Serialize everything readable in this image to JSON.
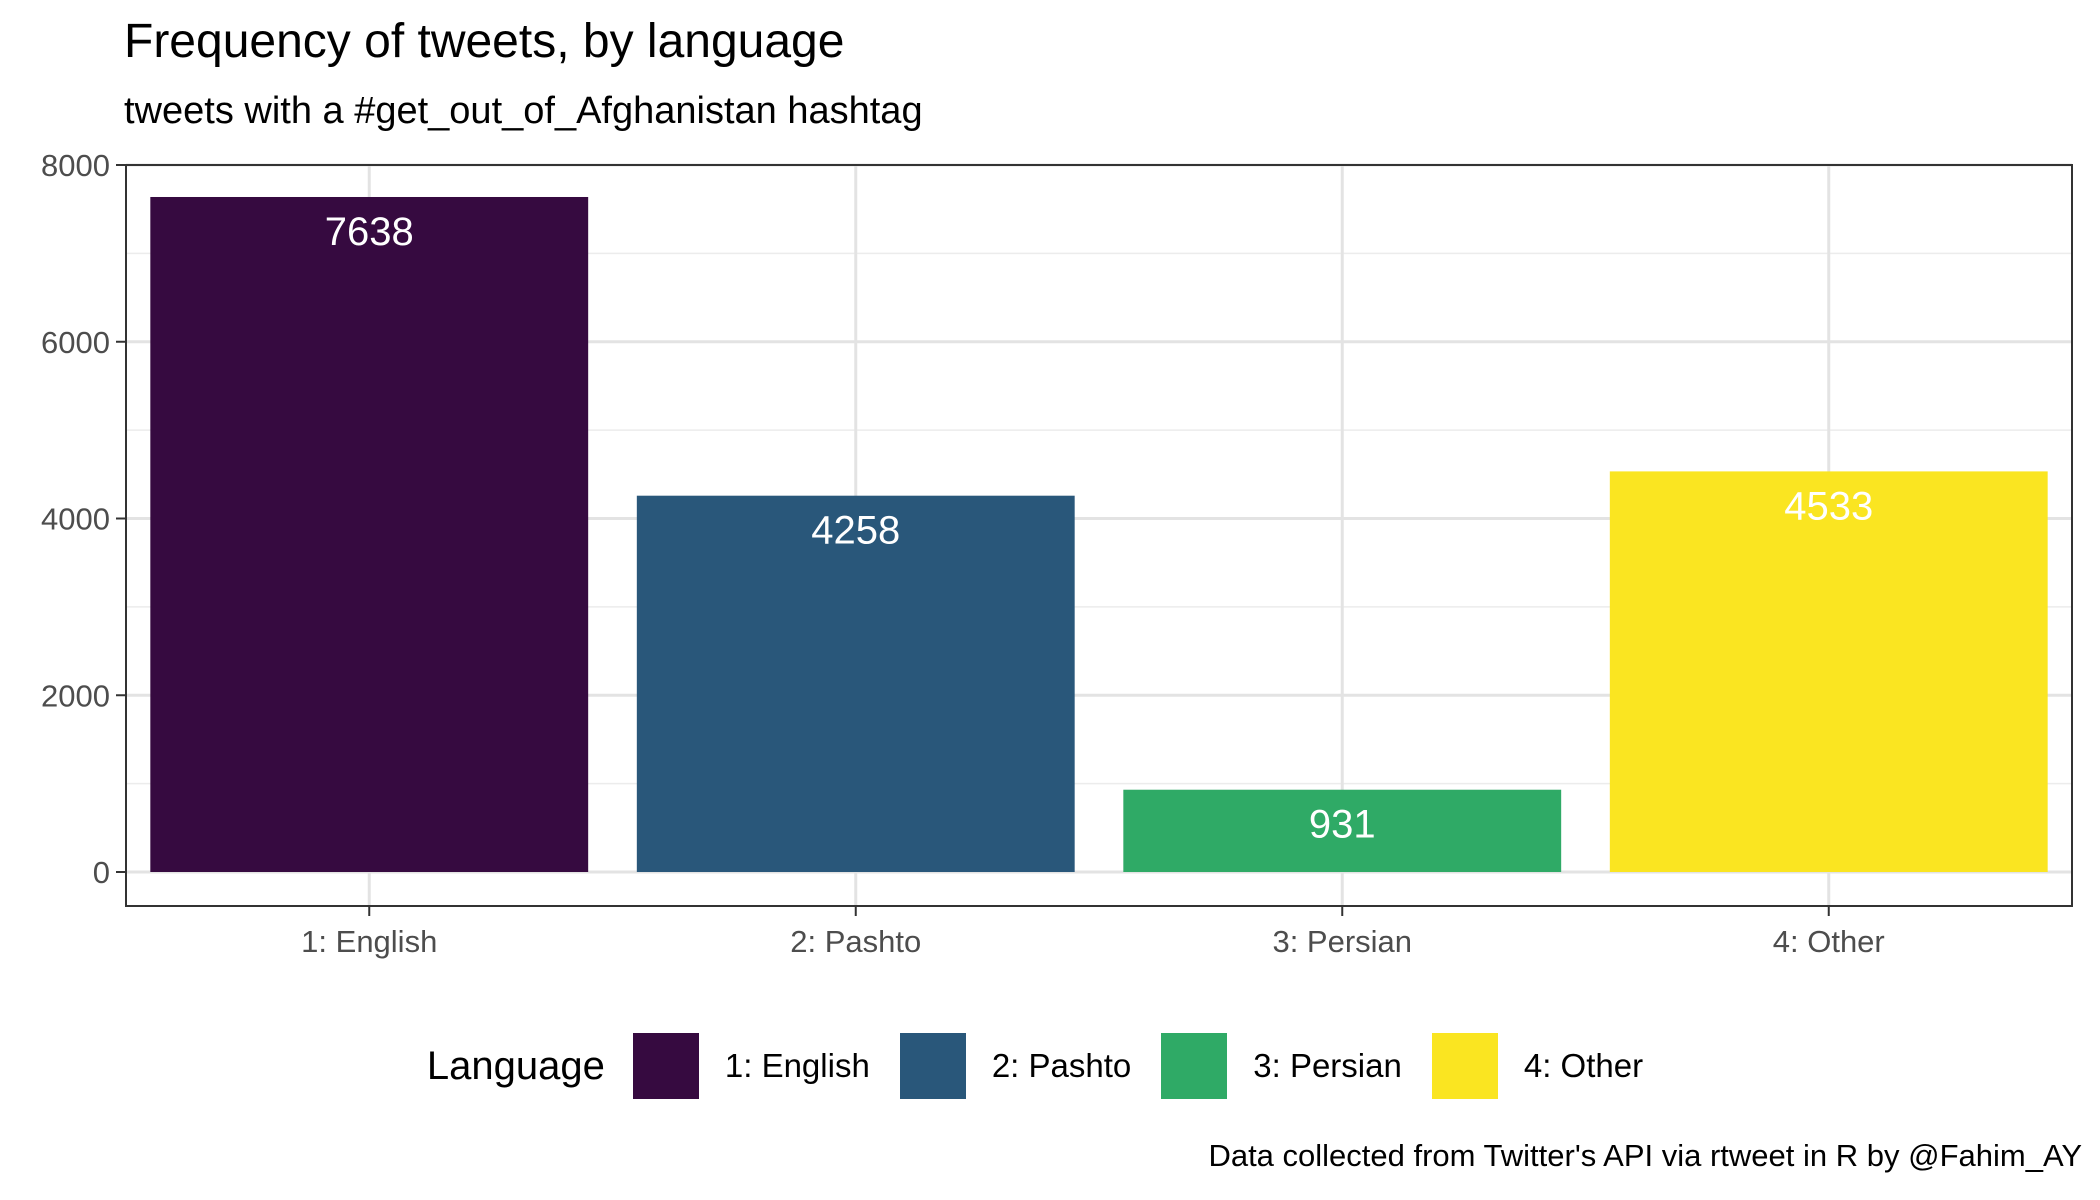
{
  "chart_data": {
    "type": "bar",
    "title": "Frequency of tweets, by language",
    "subtitle": "tweets with a #get_out_of_Afghanistan hashtag",
    "categories": [
      "1: English",
      "2: Pashto",
      "3: Persian",
      "4: Other"
    ],
    "values": [
      7638,
      4258,
      931,
      4533
    ],
    "data_labels": [
      "7638",
      "4258",
      "931",
      "4533"
    ],
    "colors": [
      "#360a40",
      "#29577a",
      "#2faa66",
      "#fae521"
    ],
    "ylim": [
      0,
      8000
    ],
    "yticks": [
      0,
      2000,
      4000,
      6000,
      8000
    ],
    "ytick_labels": [
      "0",
      "2000",
      "4000",
      "6000",
      "8000"
    ],
    "grid": true,
    "legend": {
      "title": "Language",
      "position": "bottom",
      "entries": [
        "1: English",
        "2: Pashto",
        "3: Persian",
        "4: Other"
      ]
    },
    "caption": "Data collected from Twitter's API via rtweet in R by @Fahim_AY"
  }
}
